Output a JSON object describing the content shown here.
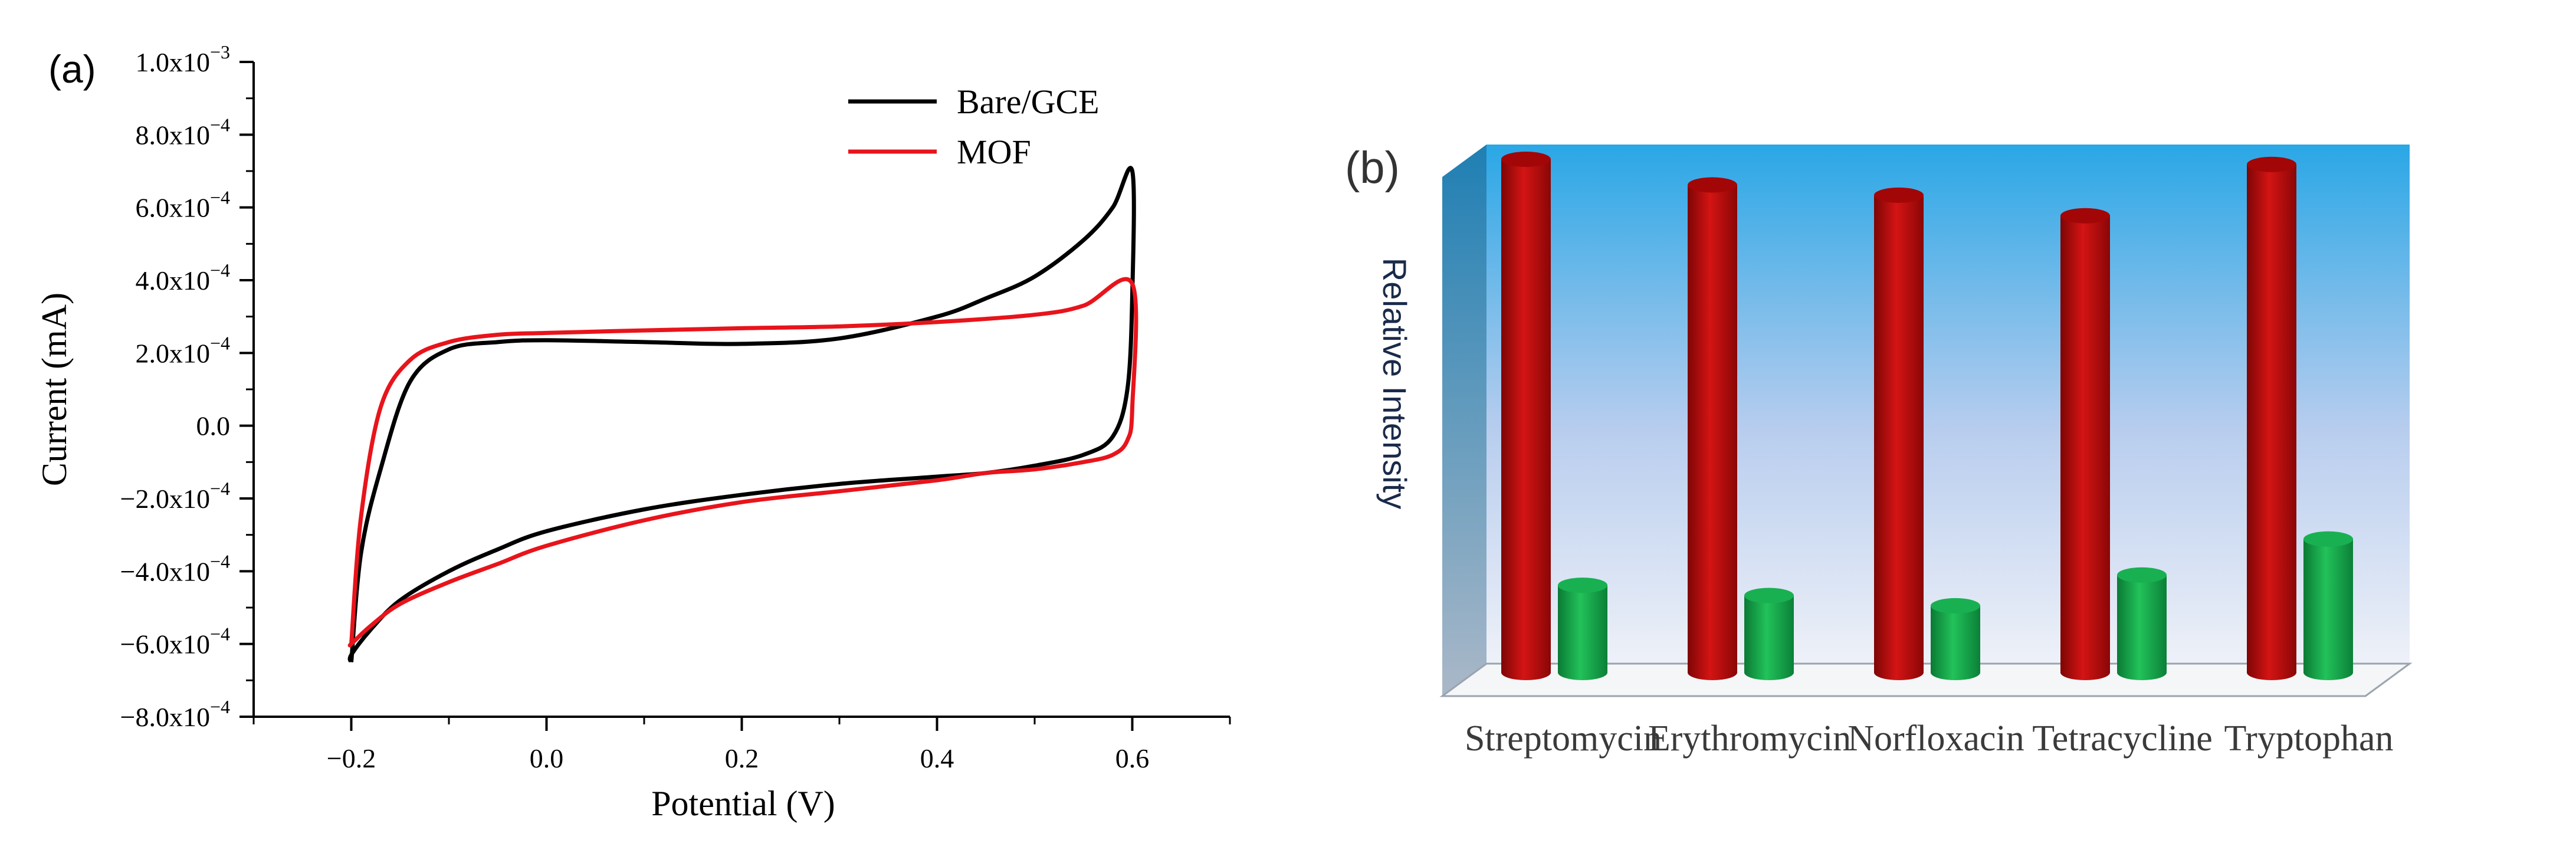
{
  "panel_a": {
    "label": "(a)",
    "chart_data": {
      "type": "line",
      "xlabel": "Potential (V)",
      "ylabel": "Current (mA)",
      "xlim": [
        -0.3,
        0.7
      ],
      "ylim": [
        -0.0008,
        0.001
      ],
      "x_ticks": [
        {
          "value": -0.2,
          "label": "−0.2"
        },
        {
          "value": 0.0,
          "label": "0.0"
        },
        {
          "value": 0.2,
          "label": "0.2"
        },
        {
          "value": 0.4,
          "label": "0.4"
        },
        {
          "value": 0.6,
          "label": "0.6"
        }
      ],
      "y_ticks": [
        {
          "value": 0.001,
          "mant": "1.0x10",
          "exp": "−3"
        },
        {
          "value": 0.0008,
          "mant": "8.0x10",
          "exp": "−4"
        },
        {
          "value": 0.0006,
          "mant": "6.0x10",
          "exp": "−4"
        },
        {
          "value": 0.0004,
          "mant": "4.0x10",
          "exp": "−4"
        },
        {
          "value": 0.0002,
          "mant": "2.0x10",
          "exp": "−4"
        },
        {
          "value": 0,
          "mant": "0.0",
          "exp": ""
        },
        {
          "value": -0.0002,
          "mant": "−2.0x10",
          "exp": "−4"
        },
        {
          "value": -0.0004,
          "mant": "−4.0x10",
          "exp": "−4"
        },
        {
          "value": -0.0006,
          "mant": "−6.0x10",
          "exp": "−4"
        },
        {
          "value": -0.0008,
          "mant": "−8.0x10",
          "exp": "−4"
        }
      ],
      "legend_position": "top-right",
      "grid": false,
      "series": [
        {
          "name": "Bare/GCE",
          "color": "#000000",
          "x": [
            -0.2,
            -0.19,
            -0.17,
            -0.14,
            -0.1,
            -0.05,
            0.0,
            0.1,
            0.2,
            0.3,
            0.4,
            0.45,
            0.5,
            0.55,
            0.58,
            0.6,
            0.6,
            0.595,
            0.58,
            0.55,
            0.5,
            0.45,
            0.4,
            0.3,
            0.2,
            0.1,
            0.0,
            -0.05,
            -0.1,
            -0.15,
            -0.18,
            -0.2,
            -0.2
          ],
          "y": [
            -0.00065,
            -0.00035,
            -0.00012,
            0.00012,
            0.00021,
            0.00023,
            0.000235,
            0.00023,
            0.000225,
            0.00024,
            0.0003,
            0.00035,
            0.00041,
            0.00051,
            0.0006,
            0.0007,
            0.00036,
            0.0001,
            -3e-05,
            -8e-05,
            -0.00011,
            -0.00013,
            -0.00014,
            -0.00016,
            -0.00019,
            -0.00023,
            -0.00029,
            -0.00034,
            -0.0004,
            -0.00048,
            -0.00056,
            -0.00063,
            -0.00065
          ]
        },
        {
          "name": "MOF",
          "color": "#e8141b",
          "x": [
            -0.2,
            -0.19,
            -0.17,
            -0.14,
            -0.1,
            -0.05,
            0.0,
            0.1,
            0.2,
            0.3,
            0.4,
            0.5,
            0.55,
            0.6,
            0.6,
            0.595,
            0.58,
            0.55,
            0.5,
            0.45,
            0.4,
            0.3,
            0.2,
            0.1,
            0.0,
            -0.05,
            -0.1,
            -0.15,
            -0.18,
            -0.2,
            -0.2
          ],
          "y": [
            -0.0006,
            -0.00025,
            5e-05,
            0.00018,
            0.00023,
            0.00025,
            0.000255,
            0.000262,
            0.000268,
            0.000273,
            0.000285,
            0.000305,
            0.00033,
            0.00039,
            5e-05,
            -4e-05,
            -8e-05,
            -0.0001,
            -0.00012,
            -0.00013,
            -0.00015,
            -0.00018,
            -0.00021,
            -0.00026,
            -0.00033,
            -0.00038,
            -0.00043,
            -0.00049,
            -0.00055,
            -0.0006,
            -0.0006
          ]
        }
      ]
    }
  },
  "panel_b": {
    "label": "(b)",
    "chart_data": {
      "type": "bar",
      "ylabel": "Relative Intensity",
      "categories": [
        "Streptomycin",
        "Erythromycin",
        "Norfloxacin",
        "Tetracycline",
        "Tryptophan"
      ],
      "ylim": [
        0,
        1
      ],
      "series": [
        {
          "color": "#c40a0a",
          "values": [
            1.0,
            0.95,
            0.93,
            0.89,
            0.99
          ]
        },
        {
          "color": "#14a84c",
          "values": [
            0.17,
            0.15,
            0.13,
            0.19,
            0.26
          ]
        }
      ],
      "background_top": "#2aa7e6",
      "background_bottom": "#eef1f8"
    }
  }
}
